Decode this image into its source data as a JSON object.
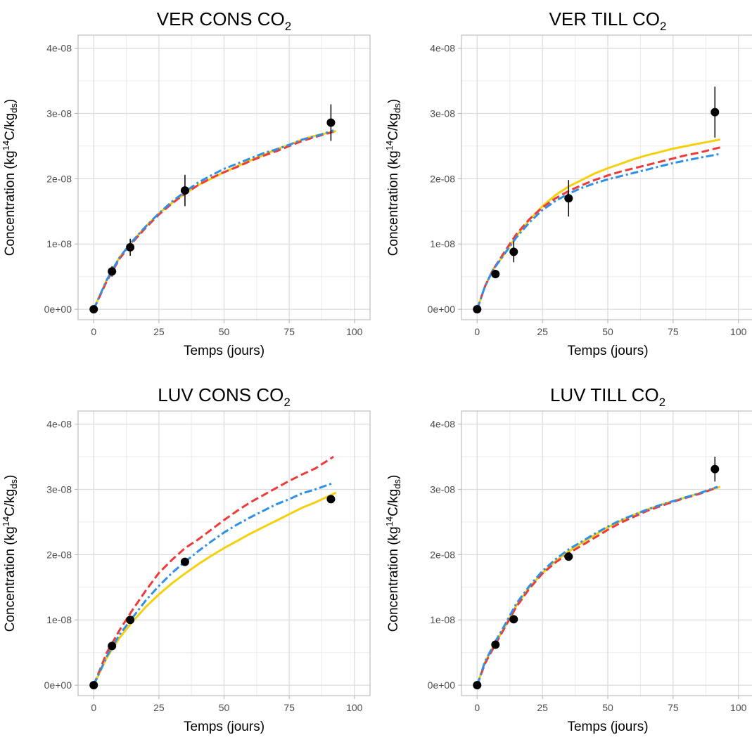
{
  "chart_data": [
    {
      "type": "line",
      "title": "VER CONS CO",
      "title_subscript": "2",
      "xlabel": "Temps (jours)",
      "ylabel": "Concentration (kg",
      "ylabel_sup": "14",
      "ylabel_mid": "C/kg",
      "ylabel_sub": "ds",
      "ylabel_end": ")",
      "xlim": [
        -6,
        106
      ],
      "ylim": [
        -1.6e-09,
        4.2e-08
      ],
      "x_ticks": [
        0,
        25,
        50,
        75,
        100
      ],
      "x_tick_labels": [
        "0",
        "25",
        "50",
        "75",
        "100"
      ],
      "y_ticks": [
        0,
        1e-08,
        2e-08,
        3e-08,
        4e-08
      ],
      "y_tick_labels": [
        "0e+00",
        "1e-08",
        "2e-08",
        "3e-08",
        "4e-08"
      ],
      "grid": true,
      "series": [
        {
          "style": "solid",
          "color": "#f5d00c",
          "x": [
            0,
            5,
            10,
            15,
            20,
            25,
            30,
            35,
            40,
            45,
            50,
            55,
            60,
            65,
            70,
            75,
            80,
            85,
            93
          ],
          "y": [
            0,
            4.5e-09,
            8e-09,
            1.05e-08,
            1.27e-08,
            1.47e-08,
            1.63e-08,
            1.77e-08,
            1.9e-08,
            2e-08,
            2.1e-08,
            2.19e-08,
            2.28e-08,
            2.36e-08,
            2.45e-08,
            2.52e-08,
            2.6e-08,
            2.66e-08,
            2.73e-08
          ]
        },
        {
          "style": "dashed",
          "color": "#ee3a3a",
          "x": [
            0,
            5,
            10,
            15,
            20,
            25,
            30,
            35,
            40,
            45,
            50,
            55,
            60,
            65,
            70,
            75,
            80,
            85,
            92
          ],
          "y": [
            0,
            4.3e-09,
            7.8e-09,
            1.03e-08,
            1.25e-08,
            1.45e-08,
            1.62e-08,
            1.77e-08,
            1.9e-08,
            2.01e-08,
            2.1e-08,
            2.18e-08,
            2.27e-08,
            2.35e-08,
            2.42e-08,
            2.5e-08,
            2.58e-08,
            2.64e-08,
            2.72e-08
          ]
        },
        {
          "style": "dotdash",
          "color": "#2f90e8",
          "x": [
            0,
            5,
            10,
            15,
            20,
            25,
            30,
            35,
            40,
            45,
            50,
            55,
            60,
            65,
            70,
            75,
            80,
            85,
            92
          ],
          "y": [
            0,
            4.5e-09,
            8e-09,
            1.05e-08,
            1.27e-08,
            1.47e-08,
            1.65e-08,
            1.8e-08,
            1.94e-08,
            2.05e-08,
            2.15e-08,
            2.23e-08,
            2.31e-08,
            2.39e-08,
            2.45e-08,
            2.52e-08,
            2.6e-08,
            2.65e-08,
            2.74e-08
          ]
        }
      ],
      "points": [
        {
          "x": 0,
          "y": 0,
          "err": 5e-10
        },
        {
          "x": 7,
          "y": 5.8e-09,
          "err": 8e-10
        },
        {
          "x": 14,
          "y": 9.5e-09,
          "err": 1.3e-09
        },
        {
          "x": 35,
          "y": 1.82e-08,
          "err": 2.4e-09
        },
        {
          "x": 91,
          "y": 2.86e-08,
          "err": 2.8e-09
        }
      ]
    },
    {
      "type": "line",
      "title": "VER TILL CO",
      "title_subscript": "2",
      "xlabel": "Temps (jours)",
      "ylabel": "Concentration (kg",
      "ylabel_sup": "14",
      "ylabel_mid": "C/kg",
      "ylabel_sub": "ds",
      "ylabel_end": ")",
      "xlim": [
        -6,
        106
      ],
      "ylim": [
        -1.6e-09,
        4.2e-08
      ],
      "x_ticks": [
        0,
        25,
        50,
        75,
        100
      ],
      "x_tick_labels": [
        "0",
        "25",
        "50",
        "75",
        "100"
      ],
      "y_ticks": [
        0,
        1e-08,
        2e-08,
        3e-08,
        4e-08
      ],
      "y_tick_labels": [
        "0e+00",
        "1e-08",
        "2e-08",
        "3e-08",
        "4e-08"
      ],
      "grid": true,
      "series": [
        {
          "style": "solid",
          "color": "#f5d00c",
          "x": [
            0,
            3,
            6,
            10,
            15,
            20,
            25,
            30,
            35,
            40,
            45,
            50,
            55,
            60,
            65,
            70,
            75,
            80,
            85,
            93
          ],
          "y": [
            0,
            3.5e-09,
            6e-09,
            8.2e-09,
            1.12e-08,
            1.37e-08,
            1.58e-08,
            1.75e-08,
            1.88e-08,
            1.98e-08,
            2.08e-08,
            2.16e-08,
            2.23e-08,
            2.3e-08,
            2.36e-08,
            2.41e-08,
            2.46e-08,
            2.5e-08,
            2.54e-08,
            2.6e-08
          ]
        },
        {
          "style": "dashed",
          "color": "#ee3a3a",
          "x": [
            0,
            3,
            6,
            10,
            15,
            20,
            25,
            30,
            35,
            40,
            45,
            50,
            55,
            60,
            65,
            70,
            75,
            80,
            85,
            93
          ],
          "y": [
            0,
            3.5e-09,
            6e-09,
            8.5e-09,
            1.15e-08,
            1.38e-08,
            1.56e-08,
            1.7e-08,
            1.81e-08,
            1.9e-08,
            1.98e-08,
            2.05e-08,
            2.11e-08,
            2.16e-08,
            2.21e-08,
            2.26e-08,
            2.31e-08,
            2.36e-08,
            2.4e-08,
            2.48e-08
          ]
        },
        {
          "style": "dotdash",
          "color": "#2f90e8",
          "x": [
            0,
            3,
            6,
            10,
            15,
            20,
            25,
            30,
            35,
            40,
            45,
            50,
            55,
            60,
            65,
            70,
            75,
            80,
            85,
            93
          ],
          "y": [
            0,
            3.5e-09,
            6e-09,
            8.2e-09,
            1.1e-08,
            1.33e-08,
            1.52e-08,
            1.66e-08,
            1.77e-08,
            1.86e-08,
            1.93e-08,
            1.99e-08,
            2.04e-08,
            2.09e-08,
            2.14e-08,
            2.19e-08,
            2.24e-08,
            2.28e-08,
            2.32e-08,
            2.38e-08
          ]
        }
      ],
      "points": [
        {
          "x": 0,
          "y": 0,
          "err": 5e-10
        },
        {
          "x": 7,
          "y": 5.4e-09,
          "err": 6e-10
        },
        {
          "x": 14,
          "y": 8.8e-09,
          "err": 1.6e-09
        },
        {
          "x": 35,
          "y": 1.7e-08,
          "err": 2.8e-09
        },
        {
          "x": 91,
          "y": 3.02e-08,
          "err": 3.9e-09
        }
      ]
    },
    {
      "type": "line",
      "title": "LUV CONS CO",
      "title_subscript": "2",
      "xlabel": "Temps (jours)",
      "ylabel": "Concentration (kg",
      "ylabel_sup": "14",
      "ylabel_mid": "C/kg",
      "ylabel_sub": "ds",
      "ylabel_end": ")",
      "xlim": [
        -6,
        106
      ],
      "ylim": [
        -1.6e-09,
        4.2e-08
      ],
      "x_ticks": [
        0,
        25,
        50,
        75,
        100
      ],
      "x_tick_labels": [
        "0",
        "25",
        "50",
        "75",
        "100"
      ],
      "y_ticks": [
        0,
        1e-08,
        2e-08,
        3e-08,
        4e-08
      ],
      "y_tick_labels": [
        "0e+00",
        "1e-08",
        "2e-08",
        "3e-08",
        "4e-08"
      ],
      "grid": true,
      "series": [
        {
          "style": "solid",
          "color": "#f5d00c",
          "x": [
            0,
            5,
            10,
            15,
            20,
            25,
            30,
            35,
            40,
            45,
            50,
            55,
            60,
            65,
            70,
            75,
            80,
            85,
            93
          ],
          "y": [
            0,
            4.2e-09,
            7.3e-09,
            9.8e-09,
            1.2e-08,
            1.39e-08,
            1.56e-08,
            1.71e-08,
            1.85e-08,
            1.98e-08,
            2.1e-08,
            2.21e-08,
            2.32e-08,
            2.42e-08,
            2.52e-08,
            2.62e-08,
            2.72e-08,
            2.8e-08,
            2.95e-08
          ]
        },
        {
          "style": "dashed",
          "color": "#ee3a3a",
          "x": [
            0,
            5,
            10,
            15,
            20,
            25,
            30,
            35,
            40,
            45,
            50,
            55,
            60,
            65,
            70,
            75,
            80,
            85,
            92
          ],
          "y": [
            0,
            5e-09,
            8.5e-09,
            1.16e-08,
            1.45e-08,
            1.72e-08,
            1.92e-08,
            2.1e-08,
            2.23e-08,
            2.38e-08,
            2.53e-08,
            2.67e-08,
            2.8e-08,
            2.91e-08,
            3.02e-08,
            3.13e-08,
            3.23e-08,
            3.32e-08,
            3.5e-08
          ]
        },
        {
          "style": "dotdash",
          "color": "#2f90e8",
          "x": [
            0,
            5,
            10,
            15,
            20,
            25,
            30,
            35,
            40,
            45,
            50,
            55,
            60,
            65,
            70,
            75,
            80,
            85,
            92
          ],
          "y": [
            0,
            4.4e-09,
            7.8e-09,
            1.04e-08,
            1.3e-08,
            1.52e-08,
            1.72e-08,
            1.89e-08,
            2.05e-08,
            2.2e-08,
            2.34e-08,
            2.46e-08,
            2.57e-08,
            2.67e-08,
            2.77e-08,
            2.85e-08,
            2.94e-08,
            3e-08,
            3.1e-08
          ]
        }
      ],
      "points": [
        {
          "x": 0,
          "y": 0,
          "err": 4e-10
        },
        {
          "x": 7,
          "y": 6e-09,
          "err": 5e-10
        },
        {
          "x": 14,
          "y": 1e-08,
          "err": 6e-10
        },
        {
          "x": 35,
          "y": 1.89e-08,
          "err": 5e-10
        },
        {
          "x": 91,
          "y": 2.85e-08,
          "err": 5e-10
        }
      ]
    },
    {
      "type": "line",
      "title": "LUV TILL CO",
      "title_subscript": "2",
      "xlabel": "Temps (jours)",
      "ylabel": "Concentration (kg",
      "ylabel_sup": "14",
      "ylabel_mid": "C/kg",
      "ylabel_sub": "ds",
      "ylabel_end": ")",
      "xlim": [
        -6,
        106
      ],
      "ylim": [
        -1.6e-09,
        4.2e-08
      ],
      "x_ticks": [
        0,
        25,
        50,
        75,
        100
      ],
      "x_tick_labels": [
        "0",
        "25",
        "50",
        "75",
        "100"
      ],
      "y_ticks": [
        0,
        1e-08,
        2e-08,
        3e-08,
        4e-08
      ],
      "y_tick_labels": [
        "0e+00",
        "1e-08",
        "2e-08",
        "3e-08",
        "4e-08"
      ],
      "grid": true,
      "series": [
        {
          "style": "solid",
          "color": "#f5d00c",
          "x": [
            0,
            3,
            7,
            10,
            15,
            20,
            25,
            30,
            35,
            40,
            45,
            50,
            55,
            60,
            65,
            70,
            75,
            80,
            85,
            93
          ],
          "y": [
            0,
            3.5e-09,
            6.5e-09,
            8.5e-09,
            1.22e-08,
            1.5e-08,
            1.72e-08,
            1.9e-08,
            2.05e-08,
            2.18e-08,
            2.3e-08,
            2.42e-08,
            2.52e-08,
            2.61e-08,
            2.69e-08,
            2.76e-08,
            2.82e-08,
            2.88e-08,
            2.94e-08,
            3.04e-08
          ]
        },
        {
          "style": "dashed",
          "color": "#ee3a3a",
          "x": [
            0,
            3,
            7,
            10,
            15,
            20,
            25,
            30,
            35,
            40,
            45,
            50,
            55,
            60,
            65,
            70,
            75,
            80,
            85,
            92
          ],
          "y": [
            0,
            3.3e-09,
            6.3e-09,
            8.4e-09,
            1.2e-08,
            1.48e-08,
            1.71e-08,
            1.88e-08,
            2.02e-08,
            2.14e-08,
            2.26e-08,
            2.38e-08,
            2.49e-08,
            2.58e-08,
            2.67e-08,
            2.74e-08,
            2.81e-08,
            2.87e-08,
            2.93e-08,
            3.03e-08
          ]
        },
        {
          "style": "dotdash",
          "color": "#2f90e8",
          "x": [
            0,
            3,
            7,
            10,
            15,
            20,
            25,
            30,
            35,
            40,
            45,
            50,
            55,
            60,
            65,
            70,
            75,
            80,
            85,
            92
          ],
          "y": [
            0,
            3.6e-09,
            6.7e-09,
            8.8e-09,
            1.25e-08,
            1.52e-08,
            1.75e-08,
            1.93e-08,
            2.08e-08,
            2.2e-08,
            2.32e-08,
            2.43e-08,
            2.53e-08,
            2.61e-08,
            2.69e-08,
            2.76e-08,
            2.82e-08,
            2.88e-08,
            2.94e-08,
            3.04e-08
          ]
        }
      ],
      "points": [
        {
          "x": 0,
          "y": 0,
          "err": 4e-10
        },
        {
          "x": 7,
          "y": 6.2e-09,
          "err": 5e-10
        },
        {
          "x": 14,
          "y": 1.01e-08,
          "err": 5e-10
        },
        {
          "x": 35,
          "y": 1.97e-08,
          "err": 6e-10
        },
        {
          "x": 91,
          "y": 3.31e-08,
          "err": 1.9e-09
        }
      ]
    }
  ]
}
